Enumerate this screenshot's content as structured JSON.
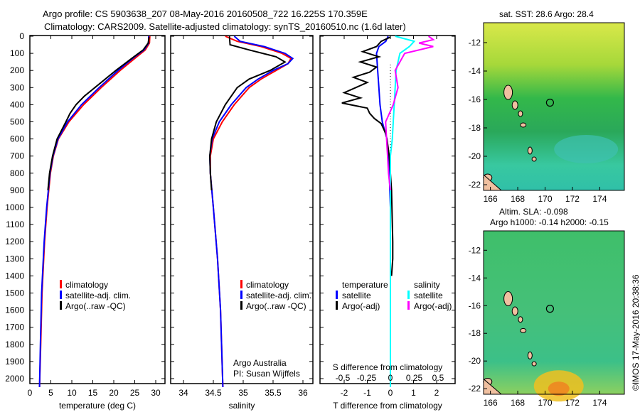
{
  "title_line1": "Argo profile: CS 5903638_207 08-May-2016 20160508_722 16.225S 170.359E",
  "title_line2": "Climatology: CARS2009. Satellite-adjusted climatology: synTS_20160510.nc (1.6d later)",
  "sst_title": "sat. SST: 28.6 Argo: 28.4",
  "sla_title1": "Altim. SLA: -0.098",
  "sla_title2": "Argo h1000: -0.14 h2000: -0.15",
  "credit": "©IMOS 17-May-2016 20:38:36",
  "colors": {
    "clim": "#ff0000",
    "sat": "#0000ff",
    "argo": "#000000",
    "sat_s": "#00ffff",
    "argo_s": "#ff00ff"
  },
  "chart_data": [
    {
      "type": "line",
      "id": "temperature",
      "xlabel": "temperature (deg C)",
      "xlim": [
        -1,
        32.2
      ],
      "ylim": [
        0,
        2050
      ],
      "xticks": [
        0,
        5,
        10,
        15,
        20,
        25,
        30
      ],
      "yticks": [
        0,
        100,
        200,
        300,
        400,
        500,
        600,
        700,
        800,
        900,
        1000,
        1100,
        1200,
        1300,
        1400,
        1500,
        1600,
        1700,
        1800,
        1900,
        2000
      ],
      "legend": [
        "climatology",
        "satellite-adj. clim.",
        "Argo(..raw -QC)"
      ],
      "series": [
        {
          "name": "climatology",
          "color": "clim",
          "depth": [
            0,
            40,
            80,
            120,
            200,
            300,
            400,
            500,
            600,
            700,
            800,
            1000,
            1200,
            1500,
            1800,
            2050
          ],
          "values": [
            28.6,
            28.5,
            27.5,
            25.5,
            21.5,
            17,
            12.8,
            9.3,
            6.8,
            5.6,
            4.9,
            4.1,
            3.5,
            2.9,
            2.6,
            2.3
          ]
        },
        {
          "name": "satellite-adj. clim.",
          "color": "sat",
          "depth": [
            0,
            40,
            80,
            120,
            200,
            300,
            400,
            500,
            600,
            700,
            800,
            1000,
            1200,
            1500,
            1800,
            2050
          ],
          "values": [
            28.3,
            28.3,
            27.2,
            25,
            21,
            16.5,
            12.3,
            9,
            6.7,
            5.5,
            4.8,
            4,
            3.4,
            2.8,
            2.5,
            2.3
          ]
        },
        {
          "name": "Argo(..raw -QC)",
          "color": "argo",
          "depth": [
            5,
            40,
            80,
            120,
            200,
            300,
            350,
            400,
            450,
            500,
            600,
            700,
            800,
            900
          ],
          "values": [
            28.4,
            28.2,
            27,
            24.8,
            20.5,
            15.5,
            13,
            11,
            9.6,
            8.6,
            6.5,
            5.4,
            4.7,
            4.3
          ]
        }
      ]
    },
    {
      "type": "line",
      "id": "salinity",
      "xlabel": "salinity",
      "xlim": [
        33.7,
        36.1
      ],
      "ylim": [
        0,
        2050
      ],
      "xticks": [
        34,
        34.5,
        35,
        35.5,
        36
      ],
      "legend": [
        "climatology",
        "satellite-adj. clim.",
        "Argo(..raw -QC)"
      ],
      "annotation": [
        "Argo Australia",
        "PI: Susan Wijffels"
      ],
      "series": [
        {
          "name": "climatology",
          "color": "clim",
          "depth": [
            0,
            30,
            60,
            100,
            130,
            160,
            200,
            250,
            300,
            400,
            500,
            600,
            700,
            800,
            1000,
            1300,
            1600,
            2050
          ],
          "values": [
            34.7,
            34.9,
            35.3,
            35.65,
            35.8,
            35.75,
            35.55,
            35.3,
            35.1,
            34.85,
            34.65,
            34.5,
            34.45,
            34.45,
            34.5,
            34.57,
            34.62,
            34.66
          ]
        },
        {
          "name": "satellite-adj. clim.",
          "color": "sat",
          "depth": [
            0,
            30,
            60,
            100,
            130,
            160,
            200,
            250,
            300,
            400,
            500,
            600,
            700,
            800,
            1000,
            1300,
            1600,
            2050
          ],
          "values": [
            34.85,
            34.95,
            35.35,
            35.7,
            35.83,
            35.75,
            35.5,
            35.25,
            35.05,
            34.8,
            34.6,
            34.48,
            34.44,
            34.45,
            34.5,
            34.57,
            34.62,
            34.66
          ]
        },
        {
          "name": "Argo(..raw -QC)",
          "color": "argo",
          "depth": [
            0,
            50,
            80,
            120,
            150,
            200,
            250,
            300,
            400,
            500,
            600,
            700,
            800,
            900
          ],
          "values": [
            34.77,
            34.78,
            35.1,
            35.55,
            35.7,
            35.45,
            35.1,
            34.9,
            34.7,
            34.55,
            34.47,
            34.44,
            34.45,
            34.47
          ]
        }
      ]
    },
    {
      "type": "line",
      "id": "difference",
      "xlabel": "T difference from climatology",
      "x2label": "S difference from climatology",
      "xlim": [
        -2.9,
        3.2
      ],
      "ylim": [
        0,
        2050
      ],
      "xticks": [
        -2,
        -1,
        0,
        1,
        2
      ],
      "x2ticks": [
        -0.5,
        -0.25,
        0,
        0.25,
        0.5
      ],
      "legend_t": [
        "temperature",
        "satellite",
        "Argo(-adj)"
      ],
      "legend_s": [
        "salinity",
        "satellite",
        "Argo(-adj)"
      ],
      "series": [
        {
          "name": "T satellite",
          "color": "sat",
          "axis": "T",
          "depth": [
            0,
            30,
            60,
            100,
            200,
            300,
            400,
            500,
            600,
            700,
            800,
            1000,
            2050
          ],
          "values": [
            -0.1,
            -0.2,
            -0.5,
            -0.6,
            -0.55,
            -0.5,
            -0.45,
            -0.35,
            -0.15,
            -0.1,
            -0.05,
            0,
            0
          ]
        },
        {
          "name": "T Argo(-adj)",
          "color": "argo",
          "axis": "T",
          "depth": [
            5,
            30,
            60,
            90,
            120,
            150,
            180,
            210,
            240,
            270,
            300,
            330,
            360,
            390,
            420,
            450,
            480,
            510,
            540,
            570,
            600,
            650,
            700,
            800,
            900,
            1200,
            1300,
            1400
          ],
          "values": [
            0,
            -0.4,
            -0.6,
            -1.2,
            -0.5,
            -1.3,
            -0.6,
            -0.9,
            -1.6,
            -1,
            -1.5,
            -2,
            -1.3,
            -2.1,
            -1,
            -0.9,
            -0.7,
            -0.4,
            -0.3,
            -0.2,
            -0.15,
            -0.1,
            -0.05,
            0,
            0.05,
            0.1,
            0.1,
            0.05
          ]
        },
        {
          "name": "S satellite",
          "color": "sat_s",
          "axis": "S",
          "depth": [
            0,
            30,
            60,
            100,
            150,
            200,
            300,
            400,
            500,
            600,
            700,
            1000,
            2050
          ],
          "values": [
            0.05,
            0.25,
            0.2,
            0.1,
            0.08,
            0.06,
            0.05,
            0.04,
            0.03,
            0.02,
            0,
            0,
            0
          ]
        },
        {
          "name": "S Argo(-adj)",
          "color": "argo_s",
          "axis": "S",
          "depth": [
            0,
            20,
            40,
            60,
            100,
            200,
            300,
            400,
            500,
            600,
            700,
            800,
            900
          ],
          "values": [
            0.4,
            0.45,
            0.3,
            0.45,
            0.15,
            0.05,
            0.08,
            0.03,
            -0.05,
            -0.04,
            -0.03,
            -0.02,
            0
          ]
        }
      ]
    },
    {
      "type": "heatmap",
      "id": "sst_map",
      "xticks": [
        166,
        168,
        170,
        172,
        174
      ],
      "yticks": [
        -12,
        -14,
        -16,
        -18,
        -20,
        -22
      ],
      "xlim": [
        165.5,
        175.8
      ],
      "ylim": [
        -22.4,
        -10.6
      ],
      "marker": [
        170.359,
        -16.225
      ]
    },
    {
      "type": "heatmap",
      "id": "sla_map",
      "xticks": [
        166,
        168,
        170,
        172,
        174
      ],
      "yticks": [
        -12,
        -14,
        -16,
        -18,
        -20,
        -22
      ],
      "xlim": [
        165.5,
        175.8
      ],
      "ylim": [
        -22.4,
        -10.6
      ],
      "marker": [
        170.359,
        -16.225
      ]
    }
  ]
}
